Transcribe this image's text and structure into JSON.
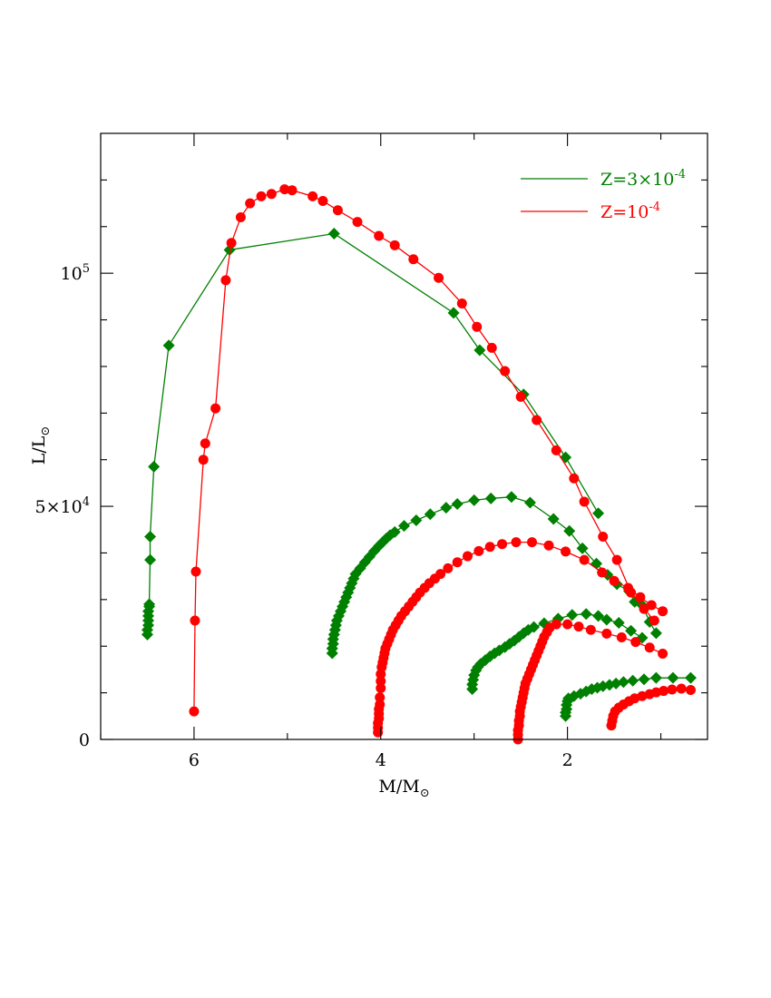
{
  "chart_data": {
    "type": "scatter",
    "xlabel": "M/M",
    "xlabel_symbol": "⊙",
    "ylabel": "L/L",
    "ylabel_symbol": "⊙",
    "xlim": [
      7.0,
      0.5
    ],
    "ylim": [
      0,
      130000
    ],
    "x_reversed": true,
    "x_ticks": [
      {
        "value": 6,
        "label": "6"
      },
      {
        "value": 4,
        "label": "4"
      },
      {
        "value": 2,
        "label": "2"
      }
    ],
    "x_minor_ticks": [
      7,
      5,
      3,
      1
    ],
    "y_ticks": [
      {
        "value": 0,
        "base": "0",
        "exp": ""
      },
      {
        "value": 50000,
        "base": "5×10",
        "exp": "4"
      },
      {
        "value": 100000,
        "base": "10",
        "exp": "5"
      }
    ],
    "y_minor_ticks": [
      10000,
      20000,
      30000,
      40000,
      60000,
      70000,
      80000,
      90000,
      110000,
      120000
    ],
    "grid": false,
    "legend_position": "top-right",
    "series": [
      {
        "name": "Z=3×10",
        "name_exp": "-4",
        "color": "#008000",
        "marker": "diamond",
        "tracks": [
          [
            [
              6.5,
              22500
            ],
            [
              6.5,
              23500
            ],
            [
              6.49,
              24500
            ],
            [
              6.49,
              25500
            ],
            [
              6.49,
              26500
            ],
            [
              6.49,
              27500
            ],
            [
              6.48,
              28500
            ],
            [
              6.48,
              29000
            ],
            [
              6.47,
              38500
            ],
            [
              6.47,
              43500
            ],
            [
              6.43,
              58500
            ],
            [
              6.27,
              84500
            ],
            [
              5.62,
              105000
            ],
            [
              4.5,
              108500
            ],
            [
              3.22,
              91500
            ],
            [
              2.94,
              83500
            ],
            [
              2.47,
              74000
            ],
            [
              2.02,
              60500
            ],
            [
              1.67,
              48500
            ]
          ],
          [
            [
              4.52,
              18500
            ],
            [
              4.52,
              19500
            ],
            [
              4.51,
              20500
            ],
            [
              4.51,
              21500
            ],
            [
              4.5,
              22500
            ],
            [
              4.49,
              23500
            ],
            [
              4.48,
              24500
            ],
            [
              4.47,
              25500
            ],
            [
              4.45,
              26500
            ],
            [
              4.43,
              27500
            ],
            [
              4.41,
              28500
            ],
            [
              4.39,
              29500
            ],
            [
              4.37,
              30500
            ],
            [
              4.35,
              31500
            ],
            [
              4.33,
              32500
            ],
            [
              4.31,
              33500
            ],
            [
              4.29,
              34500
            ],
            [
              4.27,
              35500
            ],
            [
              4.22,
              36700
            ],
            [
              4.17,
              38000
            ],
            [
              4.12,
              39200
            ],
            [
              4.07,
              40400
            ],
            [
              4.02,
              41500
            ],
            [
              3.98,
              42300
            ],
            [
              3.94,
              43100
            ],
            [
              3.9,
              43800
            ],
            [
              3.85,
              44500
            ],
            [
              3.75,
              45800
            ],
            [
              3.62,
              47000
            ],
            [
              3.47,
              48300
            ],
            [
              3.3,
              49700
            ],
            [
              3.18,
              50500
            ],
            [
              3.0,
              51300
            ],
            [
              2.82,
              51700
            ],
            [
              2.6,
              52000
            ],
            [
              2.4,
              50800
            ],
            [
              2.15,
              47300
            ],
            [
              1.98,
              44700
            ],
            [
              1.84,
              41000
            ],
            [
              1.69,
              37700
            ],
            [
              1.57,
              35300
            ],
            [
              1.47,
              33300
            ],
            [
              1.34,
              31800
            ],
            [
              1.28,
              29500
            ],
            [
              1.2,
              28800
            ],
            [
              1.12,
              25200
            ],
            [
              1.05,
              22800
            ]
          ],
          [
            [
              3.02,
              10800
            ],
            [
              3.02,
              11800
            ],
            [
              3.01,
              12800
            ],
            [
              3.0,
              13800
            ],
            [
              2.98,
              14800
            ],
            [
              2.96,
              15500
            ],
            [
              2.93,
              16200
            ],
            [
              2.88,
              17000
            ],
            [
              2.83,
              17800
            ],
            [
              2.78,
              18500
            ],
            [
              2.73,
              19100
            ],
            [
              2.67,
              19800
            ],
            [
              2.62,
              20500
            ],
            [
              2.57,
              21200
            ],
            [
              2.52,
              22000
            ],
            [
              2.47,
              22800
            ],
            [
              2.42,
              23500
            ],
            [
              2.36,
              24100
            ],
            [
              2.25,
              24900
            ],
            [
              2.1,
              25900
            ],
            [
              1.95,
              26700
            ],
            [
              1.8,
              26900
            ],
            [
              1.67,
              26500
            ],
            [
              1.58,
              25700
            ],
            [
              1.45,
              25000
            ],
            [
              1.32,
              23300
            ],
            [
              1.2,
              21800
            ]
          ],
          [
            [
              2.02,
              5000
            ],
            [
              2.02,
              5800
            ],
            [
              2.01,
              6500
            ],
            [
              2.01,
              7400
            ],
            [
              2.0,
              8200
            ],
            [
              1.99,
              8800
            ],
            [
              1.93,
              9300
            ],
            [
              1.86,
              9800
            ],
            [
              1.8,
              10300
            ],
            [
              1.74,
              10800
            ],
            [
              1.68,
              11100
            ],
            [
              1.62,
              11400
            ],
            [
              1.55,
              11700
            ],
            [
              1.48,
              12000
            ],
            [
              1.4,
              12300
            ],
            [
              1.3,
              12600
            ],
            [
              1.18,
              12900
            ],
            [
              1.05,
              13200
            ],
            [
              0.87,
              13200
            ],
            [
              0.68,
              13200
            ]
          ]
        ]
      },
      {
        "name": "Z=10",
        "name_exp": "-4",
        "color": "#ff0000",
        "marker": "circle",
        "tracks": [
          [
            [
              6.0,
              6000
            ],
            [
              5.99,
              25500
            ],
            [
              5.98,
              36000
            ],
            [
              5.9,
              60000
            ],
            [
              5.88,
              63500
            ],
            [
              5.77,
              71000
            ],
            [
              5.66,
              98500
            ],
            [
              5.6,
              106500
            ],
            [
              5.5,
              112000
            ],
            [
              5.4,
              115000
            ],
            [
              5.28,
              116500
            ],
            [
              5.17,
              117000
            ],
            [
              5.03,
              118000
            ],
            [
              4.95,
              117800
            ],
            [
              4.73,
              116500
            ],
            [
              4.62,
              115500
            ],
            [
              4.46,
              113500
            ],
            [
              4.25,
              111000
            ],
            [
              4.02,
              108000
            ],
            [
              3.85,
              106000
            ],
            [
              3.65,
              103000
            ],
            [
              3.38,
              99000
            ],
            [
              3.13,
              93500
            ],
            [
              2.97,
              88500
            ],
            [
              2.81,
              84000
            ],
            [
              2.67,
              79000
            ],
            [
              2.5,
              73500
            ],
            [
              2.33,
              68500
            ],
            [
              2.12,
              62000
            ],
            [
              1.93,
              56000
            ],
            [
              1.82,
              51000
            ],
            [
              1.62,
              43500
            ],
            [
              1.47,
              38500
            ],
            [
              1.32,
              31500
            ],
            [
              1.18,
              28000
            ],
            [
              1.07,
              25500
            ]
          ],
          [
            [
              4.03,
              1500
            ],
            [
              4.03,
              2500
            ],
            [
              4.03,
              3500
            ],
            [
              4.02,
              4500
            ],
            [
              4.02,
              5500
            ],
            [
              4.02,
              6500
            ],
            [
              4.01,
              7500
            ],
            [
              4.01,
              9000
            ],
            [
              4.0,
              11000
            ],
            [
              4.0,
              12500
            ],
            [
              4.0,
              14000
            ],
            [
              3.99,
              15500
            ],
            [
              3.98,
              16500
            ],
            [
              3.97,
              17500
            ],
            [
              3.96,
              18500
            ],
            [
              3.95,
              19500
            ],
            [
              3.93,
              20500
            ],
            [
              3.91,
              21500
            ],
            [
              3.89,
              22500
            ],
            [
              3.87,
              23500
            ],
            [
              3.84,
              24500
            ],
            [
              3.81,
              25500
            ],
            [
              3.78,
              26500
            ],
            [
              3.74,
              27500
            ],
            [
              3.7,
              28500
            ],
            [
              3.66,
              29500
            ],
            [
              3.62,
              30500
            ],
            [
              3.58,
              31500
            ],
            [
              3.53,
              32500
            ],
            [
              3.48,
              33500
            ],
            [
              3.42,
              34500
            ],
            [
              3.36,
              35500
            ],
            [
              3.28,
              36700
            ],
            [
              3.18,
              38000
            ],
            [
              3.07,
              39300
            ],
            [
              2.95,
              40400
            ],
            [
              2.83,
              41300
            ],
            [
              2.7,
              41900
            ],
            [
              2.55,
              42300
            ],
            [
              2.38,
              42300
            ],
            [
              2.2,
              41600
            ],
            [
              2.02,
              40300
            ],
            [
              1.82,
              38500
            ],
            [
              1.63,
              35800
            ],
            [
              1.5,
              34000
            ],
            [
              1.35,
              32500
            ],
            [
              1.22,
              30500
            ],
            [
              1.1,
              28800
            ],
            [
              0.98,
              27500
            ]
          ],
          [
            [
              2.53,
              0
            ],
            [
              2.53,
              1000
            ],
            [
              2.53,
              2000
            ],
            [
              2.52,
              3000
            ],
            [
              2.52,
              4000
            ],
            [
              2.51,
              5000
            ],
            [
              2.51,
              6000
            ],
            [
              2.5,
              7000
            ],
            [
              2.49,
              8000
            ],
            [
              2.48,
              9000
            ],
            [
              2.47,
              10000
            ],
            [
              2.46,
              11000
            ],
            [
              2.45,
              12000
            ],
            [
              2.43,
              13000
            ],
            [
              2.41,
              14000
            ],
            [
              2.39,
              15000
            ],
            [
              2.37,
              16000
            ],
            [
              2.35,
              17000
            ],
            [
              2.33,
              18000
            ],
            [
              2.31,
              19000
            ],
            [
              2.29,
              20000
            ],
            [
              2.27,
              21000
            ],
            [
              2.25,
              22000
            ],
            [
              2.22,
              23000
            ],
            [
              2.19,
              24000
            ],
            [
              2.12,
              24700
            ],
            [
              2.0,
              24700
            ],
            [
              1.88,
              24200
            ],
            [
              1.75,
              23500
            ],
            [
              1.58,
              22700
            ],
            [
              1.42,
              21900
            ],
            [
              1.27,
              20900
            ],
            [
              1.12,
              19700
            ],
            [
              0.98,
              18400
            ]
          ],
          [
            [
              1.53,
              3000
            ],
            [
              1.52,
              4000
            ],
            [
              1.51,
              5000
            ],
            [
              1.49,
              6000
            ],
            [
              1.45,
              6800
            ],
            [
              1.4,
              7500
            ],
            [
              1.34,
              8200
            ],
            [
              1.28,
              8800
            ],
            [
              1.2,
              9300
            ],
            [
              1.12,
              9700
            ],
            [
              1.05,
              10100
            ],
            [
              0.97,
              10400
            ],
            [
              0.88,
              10700
            ],
            [
              0.78,
              10900
            ],
            [
              0.68,
              10600
            ]
          ]
        ]
      }
    ]
  }
}
